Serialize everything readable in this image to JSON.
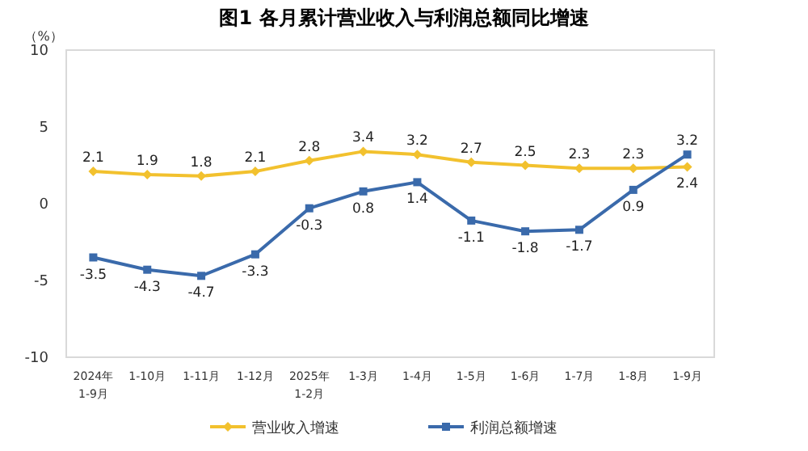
{
  "chart_data": {
    "type": "line",
    "title": "图1  各月累计营业收入与利润总额同比增速",
    "ylabel": "（%）",
    "categories": [
      "2024年\n1-9月",
      "1-10月",
      "1-11月",
      "1-12月",
      "2025年\n1-2月",
      "1-3月",
      "1-4月",
      "1-5月",
      "1-6月",
      "1-7月",
      "1-8月",
      "1-9月"
    ],
    "series": [
      {
        "name": "营业收入增速",
        "color": "#f2c12e",
        "marker": "diamond",
        "values": [
          2.1,
          1.9,
          1.8,
          2.1,
          2.8,
          3.4,
          3.2,
          2.7,
          2.5,
          2.3,
          2.3,
          2.4
        ]
      },
      {
        "name": "利润总额增速",
        "color": "#3a6aab",
        "marker": "square",
        "values": [
          -3.5,
          -4.3,
          -4.7,
          -3.3,
          -0.3,
          0.8,
          1.4,
          -1.1,
          -1.8,
          -1.7,
          0.9,
          3.2
        ]
      }
    ],
    "ylim": [
      -10,
      10
    ],
    "yticks": [
      -10,
      -5,
      0,
      5,
      10
    ],
    "grid": false,
    "legend": "bottom",
    "data_labels": true
  }
}
